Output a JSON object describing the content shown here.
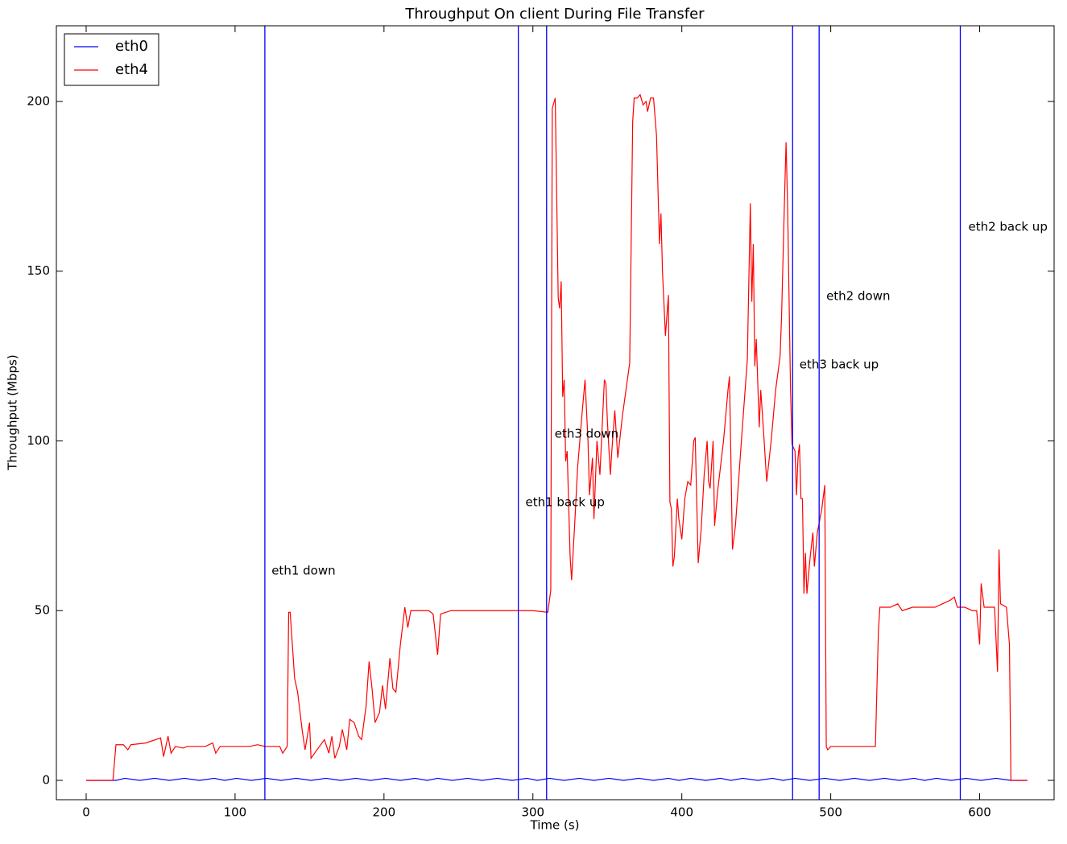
{
  "chart_data": {
    "type": "line",
    "title": "Throughput On client During File Transfer",
    "x_label": "Time (s)",
    "y_label": "Throughput (Mbps)",
    "xlim": [
      -20,
      650
    ],
    "ylim": [
      -5.7,
      222.3
    ],
    "xticks": [
      0,
      100,
      200,
      300,
      400,
      500,
      600
    ],
    "yticks": [
      0,
      50,
      100,
      150,
      200
    ],
    "legend": "upper left",
    "series": [
      {
        "name": "eth0",
        "color": "#0000ff",
        "x": [
          0,
          20,
          26,
          36,
          46,
          56,
          66,
          76,
          86,
          93,
          101,
          111,
          121,
          131,
          141,
          151,
          161,
          171,
          181,
          191,
          201,
          211,
          221,
          229,
          236,
          246,
          256,
          266,
          276,
          286,
          296,
          303,
          311,
          321,
          331,
          341,
          351,
          361,
          371,
          381,
          391,
          398,
          406,
          416,
          426,
          433,
          441,
          451,
          461,
          468,
          476,
          486,
          496,
          506,
          516,
          526,
          536,
          546,
          556,
          563,
          571,
          581,
          591,
          601,
          611,
          621,
          632
        ],
        "values": [
          0,
          0,
          0.6,
          0,
          0.6,
          0,
          0.6,
          0,
          0.6,
          0,
          0.6,
          0,
          0.6,
          0,
          0.6,
          0,
          0.6,
          0,
          0.6,
          0,
          0.6,
          0,
          0.6,
          0,
          0.6,
          0,
          0.6,
          0,
          0.6,
          0,
          0.6,
          0,
          0.6,
          0,
          0.6,
          0,
          0.6,
          0,
          0.6,
          0,
          0.6,
          0,
          0.6,
          0,
          0.6,
          0,
          0.6,
          0,
          0.6,
          0,
          0.6,
          0,
          0.6,
          0,
          0.6,
          0,
          0.6,
          0,
          0.6,
          0,
          0.6,
          0,
          0.6,
          0,
          0.6,
          0,
          0
        ]
      },
      {
        "name": "eth4",
        "color": "#ff0000",
        "x": [
          0,
          18,
          20,
          25,
          28,
          30,
          40,
          50,
          52,
          55,
          57,
          60,
          65,
          68,
          80,
          85,
          87,
          90,
          100,
          110,
          115,
          120,
          125,
          130,
          132,
          135,
          136,
          137,
          140,
          142,
          145,
          147,
          150,
          151,
          155,
          160,
          163,
          165,
          167,
          170,
          172,
          175,
          177,
          180,
          183,
          185,
          188,
          190,
          192,
          194,
          197,
          199,
          201,
          204,
          206,
          208,
          211,
          214,
          216,
          218,
          225,
          230,
          233,
          236,
          238,
          245,
          260,
          275,
          290,
          300,
          310,
          312,
          313,
          315,
          317,
          318,
          319,
          320,
          321,
          322,
          323,
          325,
          326,
          328,
          330,
          333,
          335,
          337,
          338,
          340,
          341,
          343,
          345,
          348,
          349,
          350,
          352,
          353,
          355,
          357,
          360,
          365,
          367,
          368,
          370,
          372,
          374,
          376,
          377,
          379,
          381,
          383,
          385,
          386,
          387,
          389,
          391,
          392,
          393,
          394,
          395,
          397,
          398,
          400,
          402,
          404,
          406,
          408,
          409,
          411,
          413,
          415,
          417,
          418,
          419,
          421,
          422,
          424,
          428,
          431,
          432,
          434,
          436,
          440,
          444,
          446,
          447,
          448,
          449,
          450,
          452,
          453,
          455,
          457,
          460,
          463,
          466,
          467,
          469,
          470,
          471,
          473,
          474,
          476,
          477,
          478,
          479,
          480,
          481,
          482,
          483,
          484,
          486,
          488,
          489,
          491,
          494,
          496,
          497,
          498,
          500,
          510,
          515,
          520,
          525,
          530,
          532,
          533,
          540,
          545,
          548,
          555,
          560,
          565,
          570,
          580,
          583,
          585,
          590,
          595,
          598,
          600,
          601,
          603,
          610,
          612,
          613,
          614,
          618,
          620,
          621,
          632
        ],
        "values": [
          0,
          0,
          10.5,
          10.5,
          9,
          10.5,
          11,
          12.5,
          7,
          13,
          8,
          10,
          9.5,
          10,
          10,
          11,
          8,
          10,
          10,
          10,
          10.5,
          10,
          10,
          10,
          8,
          10,
          49.5,
          49.5,
          30,
          26,
          15,
          9,
          17,
          6.5,
          9,
          12,
          8,
          13,
          6.5,
          10,
          15,
          9,
          18,
          17,
          13,
          12,
          22,
          35,
          27,
          17,
          20,
          28,
          21,
          36,
          27,
          26,
          40,
          51,
          45,
          50,
          50,
          50,
          49,
          37,
          49,
          50,
          50,
          50,
          50,
          50,
          49.5,
          56,
          198,
          201,
          142,
          139,
          147,
          113,
          118,
          94,
          97,
          66,
          59,
          75,
          92,
          108,
          118,
          100,
          84,
          95,
          77,
          100,
          90,
          118,
          117,
          106,
          90,
          97,
          109,
          95,
          107,
          123,
          194,
          201,
          201,
          202,
          199,
          200,
          197,
          201,
          201,
          190,
          158,
          167,
          150,
          131,
          143,
          82,
          80,
          63,
          66,
          83,
          77,
          71,
          83,
          88,
          87,
          100,
          101,
          64,
          74,
          90,
          100,
          88,
          86,
          100,
          75,
          85,
          100,
          115,
          119,
          68,
          75,
          100,
          124,
          170,
          141,
          158,
          122,
          130,
          104,
          115,
          102,
          88,
          100,
          115,
          125,
          137,
          172,
          188,
          170,
          115,
          99,
          97,
          84,
          95,
          99,
          83,
          83,
          55,
          67,
          55,
          65,
          73,
          63,
          73,
          80,
          87,
          10,
          9,
          10,
          10,
          10,
          10,
          10,
          10,
          44,
          51,
          51,
          52,
          50,
          51,
          51,
          51,
          51,
          53,
          54,
          51,
          51,
          50,
          50,
          40,
          58,
          51,
          51,
          32,
          68,
          52,
          51,
          40,
          0,
          0
        ]
      }
    ],
    "vlines": [
      120,
      290.2,
      309.2,
      474.4,
      492.2,
      587
    ],
    "vline_color": "#0000ff",
    "annotations": [
      {
        "text": "eth1 down",
        "x": 124.5,
        "y": 61.7
      },
      {
        "text": "eth1 back up",
        "x": 295,
        "y": 81.8
      },
      {
        "text": "eth3 down",
        "x": 314.6,
        "y": 102
      },
      {
        "text": "eth3 back up",
        "x": 479,
        "y": 122.4
      },
      {
        "text": "eth2 down",
        "x": 497,
        "y": 142.6
      },
      {
        "text": "eth2 back up",
        "x": 592.4,
        "y": 163
      }
    ]
  }
}
